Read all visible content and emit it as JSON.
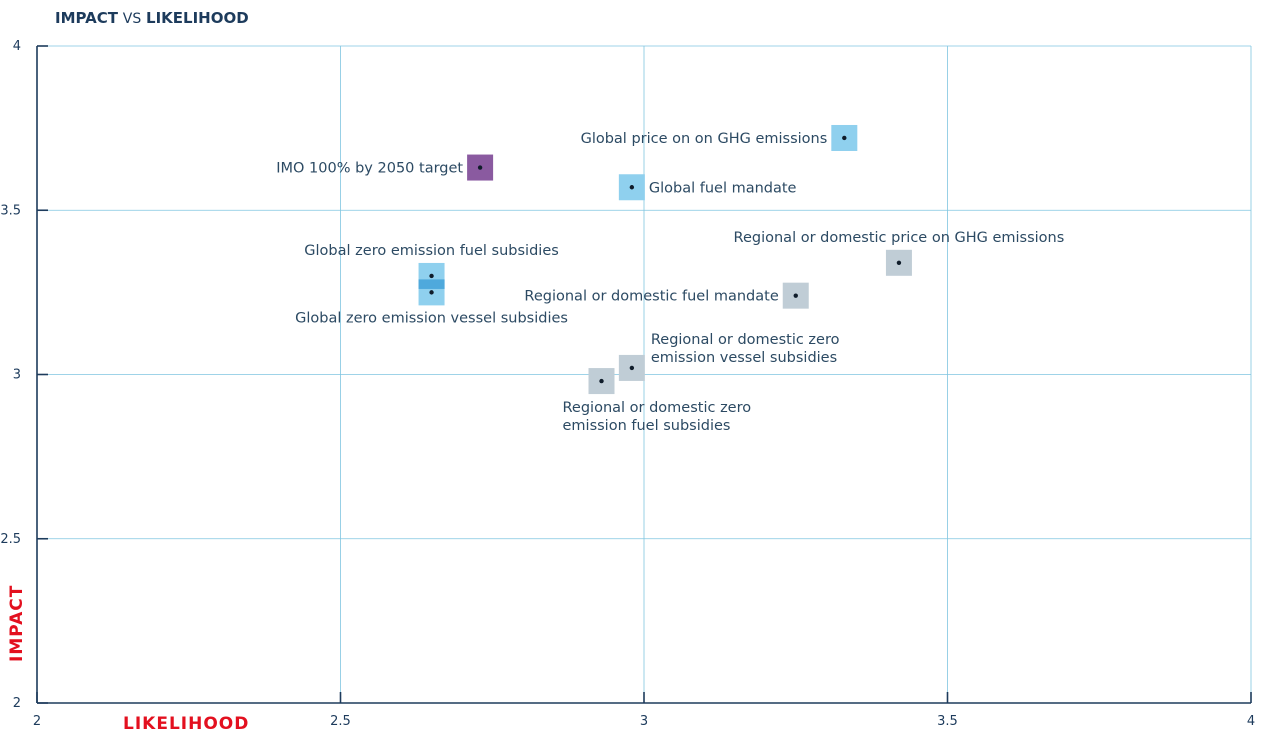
{
  "title": {
    "part1": "IMPACT",
    "vs": "VS",
    "part2": "LIKELIHOOD"
  },
  "colors": {
    "grid": "#7fc5e0",
    "axis": "#1d3b5c",
    "tick_text": "#1d3b5c",
    "label_text": "#2c4a63",
    "accent_red": "#e3101f",
    "global": "#8fd0ee",
    "global_strong": "#4fa9dc",
    "regional": "#c0cdd6",
    "imo": "#8a5aa0",
    "dot": "#0f1c2a"
  },
  "chart_data": {
    "type": "scatter",
    "title": "IMPACT VS LIKELIHOOD",
    "xlabel": "LIKELIHOOD",
    "ylabel": "IMPACT",
    "xlim": [
      2,
      4
    ],
    "ylim": [
      2,
      4
    ],
    "xticks": [
      "2",
      "2.5",
      "3",
      "3.5",
      "4"
    ],
    "yticks": [
      "2",
      "2.5",
      "3",
      "3.5",
      "4"
    ],
    "grid": true,
    "points": [
      {
        "label": "Global price on on GHG emissions",
        "x": 3.33,
        "y": 3.72,
        "category": "global",
        "label_pos": "left"
      },
      {
        "label": "IMO 100% by 2050 target",
        "x": 2.73,
        "y": 3.63,
        "category": "imo",
        "label_pos": "left"
      },
      {
        "label": "Global fuel mandate",
        "x": 2.98,
        "y": 3.57,
        "category": "global",
        "label_pos": "right"
      },
      {
        "label": "Regional or domestic price on GHG emissions",
        "x": 3.42,
        "y": 3.34,
        "category": "regional",
        "label_pos": "above"
      },
      {
        "label": "Global zero emission fuel subsidies",
        "x": 2.65,
        "y": 3.3,
        "category": "global",
        "label_pos": "above"
      },
      {
        "label": "Global zero emission vessel subsidies",
        "x": 2.65,
        "y": 3.25,
        "category": "global",
        "label_pos": "below"
      },
      {
        "label": "Regional or domestic fuel mandate",
        "x": 3.25,
        "y": 3.24,
        "category": "regional",
        "label_pos": "left"
      },
      {
        "label": "Regional or domestic zero emission vessel subsidies",
        "x": 2.98,
        "y": 3.02,
        "category": "regional",
        "label_pos": "upper-right"
      },
      {
        "label": "Regional or domestic zero emission fuel subsidies",
        "x": 2.93,
        "y": 2.98,
        "category": "regional",
        "label_pos": "below"
      }
    ]
  }
}
